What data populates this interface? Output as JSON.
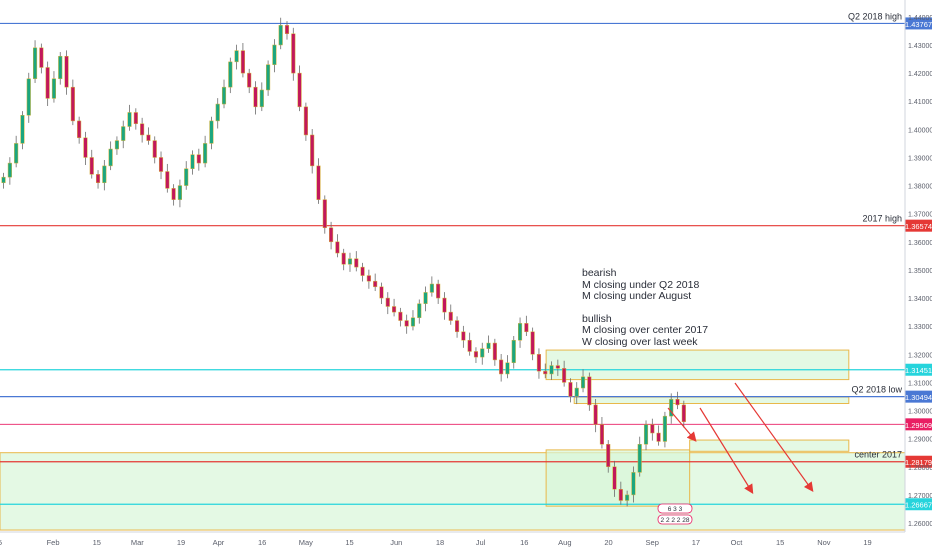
{
  "chart_data": {
    "type": "candlestick",
    "instrument_scale": "price",
    "ylim": [
      1.2568,
      1.446
    ],
    "y_ticks": [
      "1.44000",
      "1.43000",
      "1.42000",
      "1.41000",
      "1.40000",
      "1.39000",
      "1.38000",
      "1.37000",
      "1.36000",
      "1.35000",
      "1.34000",
      "1.33000",
      "1.32000",
      "1.31000",
      "1.30000",
      "1.29000",
      "1.28000",
      "1.27000",
      "1.26000"
    ],
    "x_ticks": [
      "5",
      "Feb",
      "15",
      "Mar",
      "19",
      "Apr",
      "16",
      "May",
      "15",
      "Jun",
      "18",
      "Jul",
      "16",
      "Aug",
      "20",
      "Sep",
      "17",
      "Oct",
      "15",
      "Nov",
      "19"
    ],
    "x_tick_index": [
      0,
      17,
      31,
      44,
      58,
      70,
      84,
      98,
      112,
      127,
      141,
      154,
      168,
      181,
      195,
      209,
      223,
      236,
      250,
      264,
      278
    ],
    "x_total_slots": 290,
    "candle_close_path": [
      1.383,
      1.388,
      1.395,
      1.405,
      1.418,
      1.429,
      1.422,
      1.411,
      1.418,
      1.426,
      1.415,
      1.403,
      1.397,
      1.39,
      1.384,
      1.381,
      1.387,
      1.393,
      1.396,
      1.401,
      1.406,
      1.402,
      1.398,
      1.396,
      1.39,
      1.385,
      1.379,
      1.375,
      1.38,
      1.386,
      1.391,
      1.388,
      1.395,
      1.403,
      1.409,
      1.415,
      1.424,
      1.428,
      1.42,
      1.415,
      1.408,
      1.414,
      1.423,
      1.43,
      1.437,
      1.434,
      1.42,
      1.408,
      1.398,
      1.387,
      1.375,
      1.365,
      1.36,
      1.356,
      1.352,
      1.354,
      1.351,
      1.348,
      1.346,
      1.344,
      1.34,
      1.337,
      1.335,
      1.332,
      1.33,
      1.333,
      1.338,
      1.342,
      1.345,
      1.34,
      1.335,
      1.332,
      1.328,
      1.325,
      1.321,
      1.319,
      1.322,
      1.324,
      1.318,
      1.313,
      1.317,
      1.325,
      1.331,
      1.328,
      1.32,
      1.314,
      1.313,
      1.316,
      1.315,
      1.31,
      1.305,
      1.308,
      1.312,
      1.302,
      1.295,
      1.288,
      1.28,
      1.272,
      1.268,
      1.27,
      1.278,
      1.288,
      1.295,
      1.292,
      1.289,
      1.298,
      1.304,
      1.302,
      1.296
    ],
    "levels": [
      {
        "label": "Q2 2018 high",
        "value": 1.43767,
        "value_text": "1.43767",
        "color": "#4a78d4"
      },
      {
        "label": "2017 high",
        "value": 1.36574,
        "value_text": "1.36574",
        "color": "#e53935"
      },
      {
        "label": "",
        "value": 1.31451,
        "value_text": "1.31451",
        "color": "#26d4dc"
      },
      {
        "label": "Q2 2018 low",
        "value": 1.30494,
        "value_text": "1.30494",
        "color": "#4a78d4"
      },
      {
        "label": "",
        "value": 1.29509,
        "value_text": "1.29509",
        "color": "#e91e63"
      },
      {
        "label": "center 2017",
        "value": 1.28179,
        "value_text": "1.28179",
        "color": "#e53935"
      },
      {
        "label": "",
        "value": 1.26667,
        "value_text": "1.26667",
        "color": "#26d4dc"
      }
    ],
    "annotations": {
      "bearish": [
        "bearish",
        "M closing under Q2 2018",
        "M closing under  August"
      ],
      "bullish": [
        "bullish",
        "M closing over center 2017",
        "W closing over last week"
      ]
    },
    "bottom_badges": [
      "6  3 3",
      "2 2 2 2 28"
    ],
    "colors": {
      "bull_candle": "#1ba67f",
      "bear_candle": "#c2185b",
      "wick": "#6b6b6b",
      "zone_fill": "#d9f7d9",
      "zone_border": "#e8b84a",
      "arrow": "#e53935",
      "axis_text": "#5b5f6b"
    }
  }
}
